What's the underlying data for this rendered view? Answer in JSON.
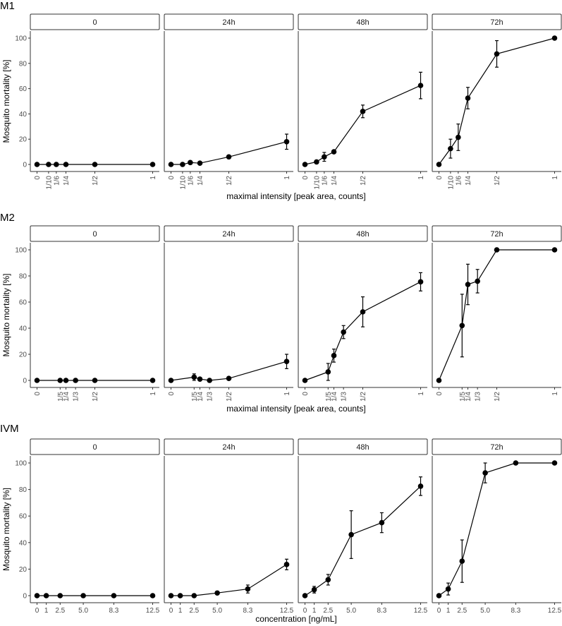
{
  "chart_data": [
    {
      "type": "line",
      "title": "M1",
      "xlabel": "maximal intensity [peak area, counts]",
      "ylabel": "Mosquito mortality [%]",
      "ylim": [
        0,
        100
      ],
      "yticks": [
        0,
        20,
        40,
        60,
        80,
        100
      ],
      "xlim": [
        0,
        1
      ],
      "xticks": [
        0,
        0.1,
        0.1667,
        0.25,
        0.5,
        1
      ],
      "xticklabels": [
        "0",
        "1/10",
        "1/6",
        "1/4",
        "1/2",
        "1"
      ],
      "xtick_rotation": 90,
      "facets": [
        {
          "label": "0",
          "x": [
            0,
            0.1,
            0.1667,
            0.25,
            0.5,
            1
          ],
          "y": [
            0,
            0,
            0,
            0,
            0,
            0
          ],
          "err": [
            0,
            0,
            0,
            0,
            0,
            0
          ]
        },
        {
          "label": "24h",
          "x": [
            0,
            0.1,
            0.1667,
            0.25,
            0.5,
            1
          ],
          "y": [
            0,
            0,
            1.5,
            1,
            6,
            18
          ],
          "err": [
            0,
            0,
            0,
            0,
            0,
            6
          ]
        },
        {
          "label": "48h",
          "x": [
            0,
            0.1,
            0.1667,
            0.25,
            0.5,
            1
          ],
          "y": [
            0,
            2,
            6,
            10,
            42,
            62.5
          ],
          "err": [
            0,
            0,
            3.5,
            0,
            5,
            10.5
          ]
        },
        {
          "label": "72h",
          "x": [
            0,
            0.1,
            0.1667,
            0.25,
            0.5,
            1
          ],
          "y": [
            0,
            12.5,
            21.5,
            52.5,
            87.5,
            100
          ],
          "err": [
            0,
            7.5,
            10.5,
            8.5,
            10.5,
            0
          ]
        }
      ]
    },
    {
      "type": "line",
      "title": "M2",
      "xlabel": "maximal intensity [peak area, counts]",
      "ylabel": "Mosquito mortality [%]",
      "ylim": [
        0,
        100
      ],
      "yticks": [
        0,
        20,
        40,
        60,
        80,
        100
      ],
      "xlim": [
        0,
        1
      ],
      "xticks": [
        0,
        0.2,
        0.25,
        0.3333,
        0.5,
        1
      ],
      "xticklabels": [
        "0",
        "1/5",
        "1/4",
        "1/3",
        "1/2",
        "1"
      ],
      "xtick_rotation": 90,
      "facets": [
        {
          "label": "0",
          "x": [
            0,
            0.2,
            0.25,
            0.3333,
            0.5,
            1
          ],
          "y": [
            0,
            0,
            0,
            0,
            0,
            0
          ],
          "err": [
            0,
            0,
            0,
            0,
            0,
            0
          ]
        },
        {
          "label": "24h",
          "x": [
            0,
            0.2,
            0.25,
            0.3333,
            0.5,
            1
          ],
          "y": [
            0,
            2.5,
            1,
            0,
            1.5,
            14.5
          ],
          "err": [
            0,
            2.5,
            0,
            0,
            0,
            5.5
          ]
        },
        {
          "label": "48h",
          "x": [
            0,
            0.2,
            0.25,
            0.3333,
            0.5,
            1
          ],
          "y": [
            0,
            6.5,
            19,
            37,
            52.5,
            75.5
          ],
          "err": [
            0,
            6.5,
            5,
            5,
            11.5,
            7
          ]
        },
        {
          "label": "72h",
          "x": [
            0,
            0.2,
            0.25,
            0.3333,
            0.5,
            1
          ],
          "y": [
            0,
            42,
            73.5,
            76,
            100,
            100
          ],
          "err": [
            0,
            24,
            15.5,
            9,
            0,
            0
          ]
        }
      ]
    },
    {
      "type": "line",
      "title": "IVM",
      "xlabel": "concentration [ng/mL]",
      "ylabel": "Mosquito mortality [%]",
      "ylim": [
        0,
        100
      ],
      "yticks": [
        0,
        20,
        40,
        60,
        80,
        100
      ],
      "xlim": [
        0,
        12.5
      ],
      "xticks": [
        0,
        1,
        2.5,
        5,
        8.3,
        12.5
      ],
      "xticklabels": [
        "0",
        "1",
        "2.5",
        "5.0",
        "8.3",
        "12.5"
      ],
      "xtick_rotation": 0,
      "facets": [
        {
          "label": "0",
          "x": [
            0,
            1,
            2.5,
            5,
            8.3,
            12.5
          ],
          "y": [
            0,
            0,
            0,
            0,
            0,
            0
          ],
          "err": [
            0,
            0,
            0,
            0,
            0,
            0
          ]
        },
        {
          "label": "24h",
          "x": [
            0,
            1,
            2.5,
            5,
            8.3,
            12.5
          ],
          "y": [
            0,
            0,
            0,
            2,
            5,
            23.5
          ],
          "err": [
            0,
            0,
            0,
            0,
            3,
            4
          ]
        },
        {
          "label": "48h",
          "x": [
            0,
            1,
            2.5,
            5,
            8.3,
            12.5
          ],
          "y": [
            0,
            4.5,
            12,
            46,
            55,
            82.5
          ],
          "err": [
            0,
            2.5,
            4,
            18,
            7.5,
            7
          ]
        },
        {
          "label": "72h",
          "x": [
            0,
            1,
            2.5,
            5,
            8.3,
            12.5
          ],
          "y": [
            0,
            5,
            26,
            92.5,
            100,
            100
          ],
          "err": [
            0,
            4.5,
            16,
            7.5,
            0,
            0
          ]
        }
      ]
    }
  ]
}
